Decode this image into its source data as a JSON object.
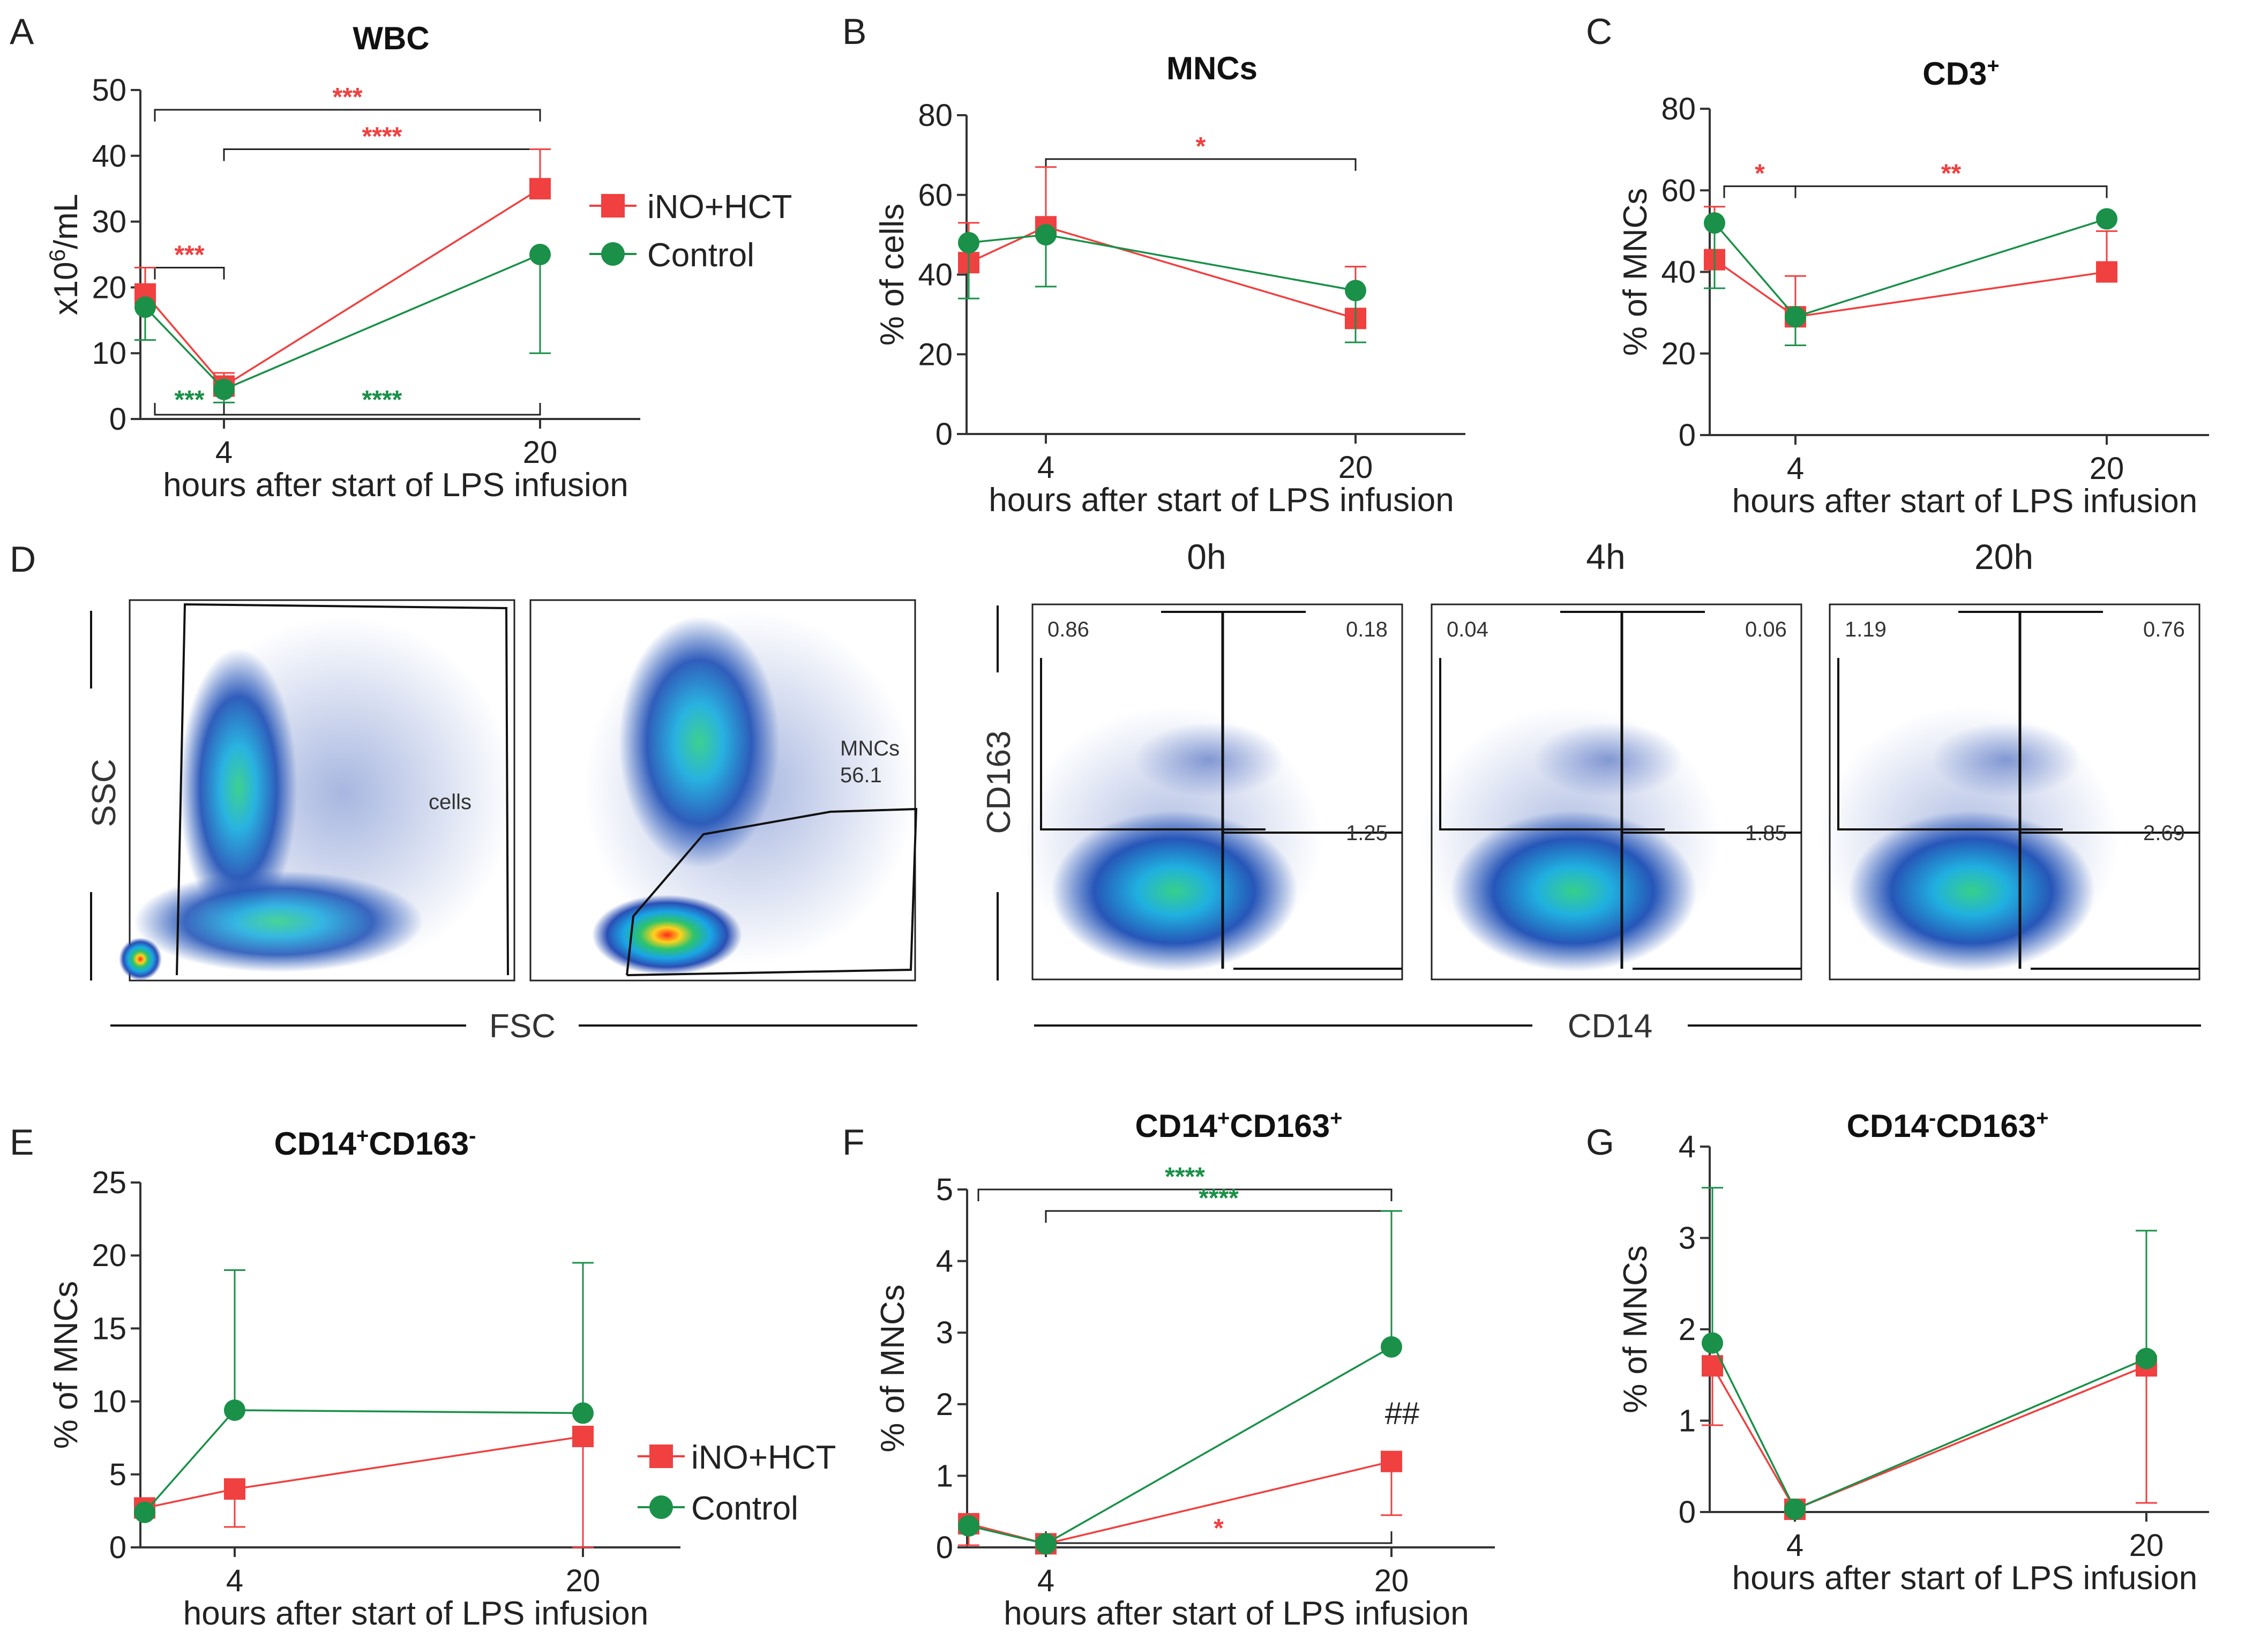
{
  "colors": {
    "treatment": "#f04040",
    "control": "#1a9048",
    "axis": "#333333"
  },
  "legend": {
    "treatment": "iNO+HCT",
    "control": "Control"
  },
  "chart_data": [
    {
      "id": "A",
      "type": "line",
      "title": "WBC",
      "ylabel": "x10",
      "ylabel_sup": "6",
      "ylabel_suffix": "/mL",
      "xlabel": "hours after start of  LPS infusion",
      "x": [
        0,
        4,
        20
      ],
      "x_tick_labels": [
        "",
        "4",
        "20"
      ],
      "ylim": [
        0,
        50
      ],
      "yticks": [
        0,
        10,
        20,
        30,
        40,
        50
      ],
      "series": [
        {
          "name": "iNO+HCT",
          "values": [
            19,
            5,
            35
          ],
          "err_up": [
            4,
            2,
            6
          ],
          "err_down": [
            0,
            0,
            0
          ]
        },
        {
          "name": "Control",
          "values": [
            17,
            4.5,
            25
          ],
          "err_up": [
            0,
            0,
            0
          ],
          "err_down": [
            5,
            2,
            15
          ]
        }
      ],
      "significance": [
        {
          "label": "***",
          "color": "treatment",
          "x1": 0,
          "x2": 20,
          "y": 47
        },
        {
          "label": "****",
          "color": "treatment",
          "x1": 4,
          "x2": 20,
          "y": 41
        },
        {
          "label": "***",
          "color": "treatment",
          "x1": 0,
          "x2": 4,
          "y": 23
        },
        {
          "label": "***",
          "color": "control",
          "x1": 0,
          "x2": 4,
          "y": 1,
          "below": true
        },
        {
          "label": "****",
          "color": "control",
          "x1": 4,
          "x2": 20,
          "y": 1,
          "below": true
        }
      ]
    },
    {
      "id": "B",
      "type": "line",
      "title": "MNCs",
      "ylabel": "% of cells",
      "xlabel": "hours after start of  LPS infusion",
      "x": [
        0,
        4,
        20
      ],
      "x_tick_labels": [
        "",
        "4",
        "20"
      ],
      "ylim": [
        0,
        80
      ],
      "yticks": [
        0,
        20,
        40,
        60,
        80
      ],
      "series": [
        {
          "name": "iNO+HCT",
          "values": [
            43,
            52,
            29
          ],
          "err_up": [
            10,
            15,
            13
          ],
          "err_down": [
            0,
            0,
            0
          ]
        },
        {
          "name": "Control",
          "values": [
            48,
            50,
            36
          ],
          "err_up": [
            0,
            0,
            0
          ],
          "err_down": [
            14,
            13,
            13
          ]
        }
      ],
      "significance": [
        {
          "label": "*",
          "color": "treatment",
          "x1": 4,
          "x2": 20,
          "y": 69
        }
      ]
    },
    {
      "id": "C",
      "type": "line",
      "title": "CD3",
      "title_sup": "+",
      "ylabel": "% of MNCs",
      "xlabel": "hours after start of  LPS infusion",
      "x": [
        0,
        4,
        20
      ],
      "x_tick_labels": [
        "",
        "4",
        "20"
      ],
      "ylim": [
        0,
        80
      ],
      "yticks": [
        0,
        20,
        40,
        60,
        80
      ],
      "series": [
        {
          "name": "iNO+HCT",
          "values": [
            43,
            29,
            40
          ],
          "err_up": [
            13,
            10,
            10
          ],
          "err_down": [
            0,
            0,
            0
          ]
        },
        {
          "name": "Control",
          "values": [
            52,
            29,
            53
          ],
          "err_up": [
            0,
            0,
            0
          ],
          "err_down": [
            16,
            7,
            0
          ]
        }
      ],
      "significance": [
        {
          "label": "*",
          "color": "treatment",
          "x1": 0,
          "x2": 4,
          "y": 61
        },
        {
          "label": "**",
          "color": "treatment",
          "x1": 4,
          "x2": 20,
          "y": 61
        }
      ]
    },
    {
      "id": "E",
      "type": "line",
      "title": "CD14",
      "title_sup1": "+",
      "title_mid": "CD163",
      "title_sup2": "-",
      "ylabel": "% of MNCs",
      "xlabel": "hours after start of  LPS infusion",
      "x": [
        0,
        4,
        20
      ],
      "x_tick_labels": [
        "",
        "4",
        "20"
      ],
      "ylim": [
        0,
        25
      ],
      "yticks": [
        0,
        5,
        10,
        15,
        20,
        25
      ],
      "series": [
        {
          "name": "iNO+HCT",
          "values": [
            2.7,
            4.0,
            7.6
          ],
          "err_up": [
            0,
            0,
            0
          ],
          "err_down": [
            0.4,
            2.6,
            7.6
          ]
        },
        {
          "name": "Control",
          "values": [
            2.4,
            9.4,
            9.2
          ],
          "err_up": [
            0,
            9.6,
            10.3
          ],
          "err_down": [
            0,
            0,
            0
          ]
        }
      ],
      "significance": []
    },
    {
      "id": "F",
      "type": "line",
      "title": "CD14",
      "title_sup1": "+",
      "title_mid": "CD163",
      "title_sup2": "+",
      "ylabel": "% of MNCs",
      "xlabel": "hours after start of  LPS infusion",
      "x": [
        0,
        4,
        20
      ],
      "x_tick_labels": [
        "",
        "4",
        "20"
      ],
      "ylim": [
        0,
        5
      ],
      "yticks": [
        0,
        1,
        2,
        3,
        4,
        5
      ],
      "series": [
        {
          "name": "iNO+HCT",
          "values": [
            0.33,
            0.05,
            1.2
          ],
          "err_up": [
            0,
            0,
            0
          ],
          "err_down": [
            0.3,
            0,
            0.75
          ]
        },
        {
          "name": "Control",
          "values": [
            0.3,
            0.05,
            2.8
          ],
          "err_up": [
            0,
            0,
            1.9
          ],
          "err_down": [
            0,
            0,
            0
          ]
        }
      ],
      "significance": [
        {
          "label": "****",
          "color": "control",
          "x1": 0,
          "x2": 20,
          "y": 5.0
        },
        {
          "label": "****",
          "color": "control",
          "x1": 4,
          "x2": 20,
          "y": 4.7
        },
        {
          "label": "*",
          "color": "treatment",
          "x1": 4,
          "x2": 20,
          "y": 0.0,
          "below": true
        }
      ],
      "annotation": "##"
    },
    {
      "id": "G",
      "type": "line",
      "title": "CD14",
      "title_sup1": "-",
      "title_mid": "CD163",
      "title_sup2": "+",
      "ylabel": "% of MNCs",
      "xlabel": "hours after start of  LPS infusion",
      "x": [
        0,
        4,
        20
      ],
      "x_tick_labels": [
        "",
        "4",
        "20"
      ],
      "ylim": [
        0,
        4
      ],
      "yticks": [
        0,
        1,
        2,
        3,
        4
      ],
      "series": [
        {
          "name": "iNO+HCT",
          "values": [
            1.6,
            0.03,
            1.6
          ],
          "err_up": [
            0,
            0,
            0
          ],
          "err_down": [
            0.65,
            0,
            1.5
          ]
        },
        {
          "name": "Control",
          "values": [
            1.85,
            0.03,
            1.68
          ],
          "err_up": [
            1.7,
            0,
            1.4
          ],
          "err_down": [
            0,
            0,
            0
          ]
        }
      ],
      "significance": []
    }
  ],
  "panel_D": {
    "letter": "D",
    "scatter_xlabel": "FSC",
    "scatter_ylabel": "SSC",
    "gate_cells": "cells",
    "gate_mncs": "MNCs",
    "gate_mncs_value": "56.1",
    "quad_xlabel": "CD14",
    "quad_ylabel": "CD163",
    "timepoints": [
      {
        "time": "0h",
        "ul": "0.86",
        "ur": "0.18",
        "lr": "1.25"
      },
      {
        "time": "4h",
        "ul": "0.04",
        "ur": "0.06",
        "lr": "1.85"
      },
      {
        "time": "20h",
        "ul": "1.19",
        "ur": "0.76",
        "lr": "2.69"
      }
    ]
  }
}
